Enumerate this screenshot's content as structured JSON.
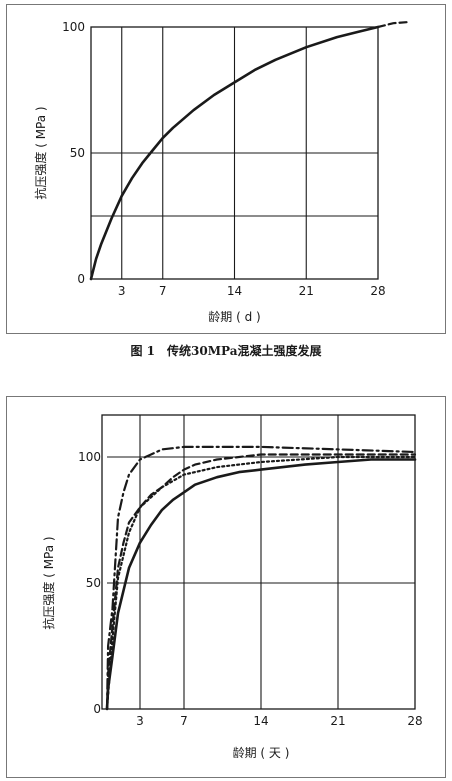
{
  "figures": [
    {
      "caption": "图 1　传统30MPa混凝土强度发展",
      "chart_data": {
        "type": "line",
        "xlabel": "龄期 ( d )",
        "ylabel": "抗压强度 ( MPa )",
        "x_ticks": [
          3,
          7,
          14,
          21,
          28
        ],
        "y_ticks": [
          0,
          50,
          100
        ],
        "xlim": [
          0,
          28
        ],
        "ylim": [
          0,
          100
        ],
        "grid": true,
        "series": [
          {
            "style": "solid",
            "x": [
              0,
              0.5,
              1,
              2,
              3,
              4,
              5,
              6,
              7,
              8,
              10,
              12,
              14,
              16,
              18,
              21,
              24,
              26,
              28
            ],
            "y": [
              0,
              8,
              14,
              24,
              33,
              40,
              46,
              51,
              56,
              60,
              67,
              73,
              78,
              83,
              87,
              92,
              96,
              98,
              100
            ]
          },
          {
            "style": "dashed",
            "x": [
              28,
              29.5,
              31
            ],
            "y": [
              100,
              101.5,
              102
            ]
          }
        ]
      }
    },
    {
      "caption": "",
      "chart_data": {
        "type": "line",
        "xlabel": "龄期 ( 天 )",
        "ylabel": "抗压强度 ( MPa )",
        "x_ticks": [
          3,
          7,
          14,
          21,
          28
        ],
        "y_ticks": [
          0,
          50,
          100
        ],
        "xlim": [
          0,
          28
        ],
        "ylim": [
          0,
          100
        ],
        "grid": true,
        "series": [
          {
            "style": "dash-dot",
            "x": [
              0,
              0.1,
              0.5,
              1,
              1.5,
              2,
              3,
              4,
              5,
              7,
              14,
              21,
              28
            ],
            "y": [
              0,
              25,
              40,
              76,
              86,
              93,
              99,
              101,
              103,
              104,
              104,
              103,
              102
            ]
          },
          {
            "style": "dashed",
            "x": [
              0,
              0.1,
              0.5,
              1,
              1.5,
              2,
              3,
              4,
              5,
              6,
              7,
              8,
              10,
              14,
              21,
              28
            ],
            "y": [
              0,
              14,
              33,
              56,
              66,
              74,
              80,
              85,
              88,
              92,
              95,
              97,
              99,
              101,
              101,
              101
            ]
          },
          {
            "style": "dotted",
            "x": [
              0,
              0.5,
              1,
              2,
              3,
              5,
              7,
              10,
              14,
              21,
              28
            ],
            "y": [
              0,
              28,
              52,
              70,
              80,
              88,
              93,
              96,
              98,
              100,
              100
            ]
          },
          {
            "style": "solid",
            "x": [
              0,
              0.1,
              0.5,
              1,
              1.5,
              2,
              3,
              4,
              5,
              6,
              7,
              8,
              10,
              12,
              14,
              16,
              18,
              21,
              24,
              28
            ],
            "y": [
              0,
              8,
              21,
              38,
              47,
              56,
              66,
              73,
              79,
              83,
              86,
              89,
              92,
              94,
              95,
              96,
              97,
              98,
              99,
              99
            ]
          }
        ]
      }
    }
  ]
}
